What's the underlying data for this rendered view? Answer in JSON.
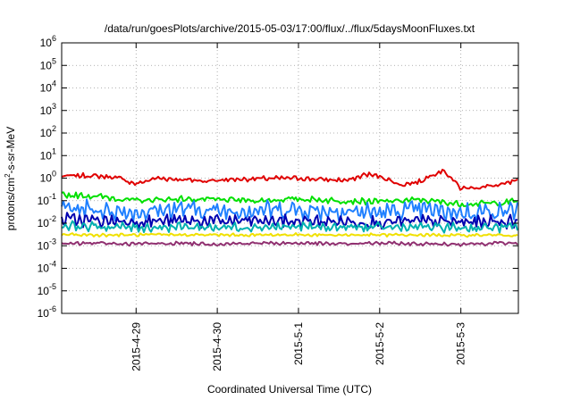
{
  "chart_data": {
    "type": "line",
    "title": "/data/run/goesPlots/archive/2015-05-03/17:00/flux/../flux/5daysMoonFluxes.txt",
    "xlabel": "Coordinated Universal Time (UTC)",
    "ylabel_parts": [
      "protons/cm",
      "2",
      "-s-sr-MeV"
    ],
    "yscale": "log",
    "ylim": [
      1e-06,
      1000000.0
    ],
    "xlim": [
      "2015-04-28T02:00",
      "2015-05-03T17:00"
    ],
    "grid": true,
    "legend": "none",
    "x_ticks": [
      {
        "value": "2015-04-29T00:00",
        "label": "2015-4-29"
      },
      {
        "value": "2015-04-30T00:00",
        "label": "2015-4-30"
      },
      {
        "value": "2015-05-01T00:00",
        "label": "2015-5-1"
      },
      {
        "value": "2015-05-02T00:00",
        "label": "2015-5-2"
      },
      {
        "value": "2015-05-03T00:00",
        "label": "2015-5-3"
      }
    ],
    "y_ticks": [
      {
        "exp": "-6",
        "value": 1e-06
      },
      {
        "exp": "-5",
        "value": 1e-05
      },
      {
        "exp": "-4",
        "value": 0.0001
      },
      {
        "exp": "-3",
        "value": 0.001
      },
      {
        "exp": "-2",
        "value": 0.01
      },
      {
        "exp": "-1",
        "value": 0.1
      },
      {
        "exp": "0",
        "value": 1
      },
      {
        "exp": "1",
        "value": 10
      },
      {
        "exp": "2",
        "value": 100
      },
      {
        "exp": "3",
        "value": 1000
      },
      {
        "exp": "4",
        "value": 10000
      },
      {
        "exp": "5",
        "value": 100000
      },
      {
        "exp": "6",
        "value": 1000000
      }
    ],
    "series": [
      {
        "color": "#e00000",
        "x": [
          "2015-04-28T02:00",
          "2015-04-28T09:00",
          "2015-04-28T18:00",
          "2015-04-29T00:00",
          "2015-04-29T06:00",
          "2015-04-29T12:00",
          "2015-04-29T20:00",
          "2015-04-30T06:00",
          "2015-04-30T14:00",
          "2015-05-01T00:00",
          "2015-05-01T08:00",
          "2015-05-01T15:00",
          "2015-05-01T20:00",
          "2015-05-02T01:00",
          "2015-05-02T06:00",
          "2015-05-02T12:00",
          "2015-05-02T16:00",
          "2015-05-02T19:00",
          "2015-05-03T00:00",
          "2015-05-03T06:00",
          "2015-05-03T12:00",
          "2015-05-03T17:00"
        ],
        "y": [
          1.2,
          1.3,
          1.1,
          0.55,
          1.0,
          0.9,
          0.75,
          0.9,
          0.95,
          1.0,
          0.85,
          0.8,
          1.5,
          1.1,
          0.5,
          0.7,
          1.6,
          2.2,
          0.35,
          0.4,
          0.5,
          0.8
        ]
      },
      {
        "color": "#00e000",
        "x": [
          "2015-04-28T02:00",
          "2015-04-28T12:00",
          "2015-04-29T00:00",
          "2015-04-29T12:00",
          "2015-04-30T00:00",
          "2015-04-30T12:00",
          "2015-05-01T00:00",
          "2015-05-01T12:00",
          "2015-05-02T00:00",
          "2015-05-02T12:00",
          "2015-05-03T00:00",
          "2015-05-03T12:00",
          "2015-05-03T17:00"
        ],
        "y": [
          0.18,
          0.16,
          0.1,
          0.12,
          0.11,
          0.1,
          0.12,
          0.1,
          0.09,
          0.11,
          0.07,
          0.08,
          0.1
        ]
      },
      {
        "color": "#2080ff",
        "x": [
          "2015-04-28T02:00",
          "2015-04-28T12:00",
          "2015-04-29T00:00",
          "2015-04-29T12:00",
          "2015-04-30T00:00",
          "2015-04-30T12:00",
          "2015-05-01T00:00",
          "2015-05-01T12:00",
          "2015-05-02T00:00",
          "2015-05-02T12:00",
          "2015-05-03T00:00",
          "2015-05-03T12:00",
          "2015-05-03T17:00"
        ],
        "y": [
          0.05,
          0.04,
          0.03,
          0.045,
          0.035,
          0.04,
          0.04,
          0.035,
          0.03,
          0.04,
          0.03,
          0.035,
          0.04
        ]
      },
      {
        "color": "#0000b0",
        "x": [
          "2015-04-28T02:00",
          "2015-04-28T12:00",
          "2015-04-29T00:00",
          "2015-04-29T12:00",
          "2015-04-30T00:00",
          "2015-04-30T12:00",
          "2015-05-01T00:00",
          "2015-05-01T12:00",
          "2015-05-02T00:00",
          "2015-05-02T12:00",
          "2015-05-03T00:00",
          "2015-05-03T12:00",
          "2015-05-03T17:00"
        ],
        "y": [
          0.015,
          0.013,
          0.012,
          0.013,
          0.012,
          0.013,
          0.012,
          0.012,
          0.011,
          0.012,
          0.011,
          0.012,
          0.012
        ]
      },
      {
        "color": "#00b0b0",
        "x": [
          "2015-04-28T02:00",
          "2015-04-28T12:00",
          "2015-04-29T00:00",
          "2015-04-29T12:00",
          "2015-04-30T00:00",
          "2015-04-30T12:00",
          "2015-05-01T00:00",
          "2015-05-01T12:00",
          "2015-05-02T00:00",
          "2015-05-02T12:00",
          "2015-05-03T00:00",
          "2015-05-03T12:00",
          "2015-05-03T17:00"
        ],
        "y": [
          0.008,
          0.007,
          0.0065,
          0.007,
          0.0065,
          0.007,
          0.0068,
          0.0066,
          0.0064,
          0.0068,
          0.0062,
          0.0065,
          0.0066
        ]
      },
      {
        "color": "#f0e000",
        "x": [
          "2015-04-28T02:00",
          "2015-04-28T12:00",
          "2015-04-29T00:00",
          "2015-04-29T12:00",
          "2015-04-30T00:00",
          "2015-04-30T12:00",
          "2015-05-01T00:00",
          "2015-05-01T12:00",
          "2015-05-02T00:00",
          "2015-05-02T12:00",
          "2015-05-03T00:00",
          "2015-05-03T12:00",
          "2015-05-03T17:00"
        ],
        "y": [
          0.0032,
          0.003,
          0.003,
          0.0031,
          0.003,
          0.003,
          0.0031,
          0.003,
          0.003,
          0.003,
          0.0029,
          0.003,
          0.003
        ]
      },
      {
        "color": "#903070",
        "x": [
          "2015-04-28T02:00",
          "2015-04-28T12:00",
          "2015-04-29T00:00",
          "2015-04-29T12:00",
          "2015-04-30T00:00",
          "2015-04-30T12:00",
          "2015-05-01T00:00",
          "2015-05-01T12:00",
          "2015-05-02T00:00",
          "2015-05-02T12:00",
          "2015-05-03T00:00",
          "2015-05-03T12:00",
          "2015-05-03T17:00"
        ],
        "y": [
          0.0012,
          0.0013,
          0.0012,
          0.0013,
          0.0012,
          0.0013,
          0.0013,
          0.0012,
          0.0013,
          0.0012,
          0.0012,
          0.0013,
          0.0013
        ]
      }
    ]
  }
}
